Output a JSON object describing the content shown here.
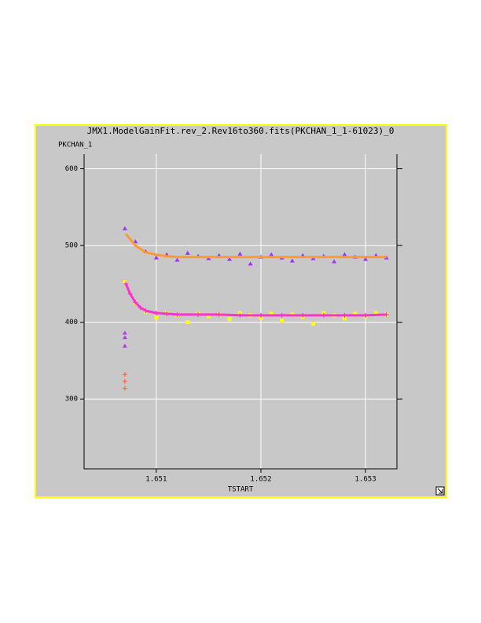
{
  "chart_data": {
    "type": "scatter",
    "title": "JMX1.ModelGainFit.rev_2.Rev16to360.fits(PKCHAN_1_1-61023)_0",
    "y_label": "PKCHAN_1",
    "x_label": "TSTART",
    "xlim": [
      1.65031,
      1.6533
    ],
    "ylim": [
      209,
      619
    ],
    "xticks": [
      1.651,
      1.652,
      1.653
    ],
    "yticks": [
      300,
      400,
      500,
      600
    ],
    "grid": true,
    "series": [
      {
        "color": "#9b30ff",
        "marker": "triangle",
        "x": [
          1.6507,
          1.6508,
          1.6509,
          1.651,
          1.6511,
          1.6512,
          1.6513,
          1.6514,
          1.6515,
          1.6516,
          1.6517,
          1.6518,
          1.6519,
          1.652,
          1.6521,
          1.6522,
          1.6523,
          1.6524,
          1.6525,
          1.6526,
          1.6527,
          1.6528,
          1.6529,
          1.653,
          1.6531,
          1.6532
        ],
        "values": [
          522,
          505,
          492,
          484,
          488,
          481,
          490,
          486,
          483,
          487,
          482,
          489,
          476,
          485,
          488,
          484,
          480,
          487,
          483,
          486,
          479,
          488,
          485,
          482,
          487,
          484
        ]
      },
      {
        "color": "#ffff00",
        "marker": "square",
        "x": [
          1.6507,
          1.6508,
          1.6509,
          1.651,
          1.6511,
          1.6512,
          1.6513,
          1.6514,
          1.6515,
          1.6516,
          1.6517,
          1.6518,
          1.6519,
          1.652,
          1.6521,
          1.6522,
          1.6523,
          1.6524,
          1.6525,
          1.6526,
          1.6527,
          1.6528,
          1.6529,
          1.653,
          1.6531,
          1.6532
        ],
        "values": [
          452,
          425,
          414,
          406,
          412,
          409,
          400,
          411,
          408,
          410,
          404,
          412,
          409,
          406,
          411,
          402,
          410,
          407,
          398,
          412,
          409,
          405,
          411,
          408,
          412,
          410
        ]
      },
      {
        "color": "#b040e0",
        "marker": "triangle",
        "x": [
          1.6507,
          1.6507,
          1.6507
        ],
        "values": [
          386,
          380,
          369
        ]
      },
      {
        "color": "#ff9933",
        "marker": "line",
        "x": [
          1.65071,
          1.6508,
          1.6509,
          1.651,
          1.6511,
          1.6512,
          1.6514,
          1.6516,
          1.6518,
          1.652,
          1.6522,
          1.6524,
          1.6526,
          1.6528,
          1.653,
          1.6532
        ],
        "values": [
          515,
          500,
          491,
          488,
          486,
          485,
          485,
          485,
          485,
          485,
          485,
          485,
          485,
          485,
          485,
          485
        ]
      },
      {
        "color": "#ff33cc",
        "marker": "plus-line",
        "x": [
          1.65071,
          1.65075,
          1.6508,
          1.65085,
          1.6509,
          1.651,
          1.6511,
          1.6512,
          1.6514,
          1.6516,
          1.6518,
          1.652,
          1.6522,
          1.6524,
          1.6526,
          1.6528,
          1.653,
          1.6532
        ],
        "values": [
          450,
          437,
          426,
          419,
          415,
          412,
          411,
          410,
          410,
          410,
          409,
          409,
          409,
          409,
          409,
          409,
          409,
          410
        ]
      },
      {
        "color": "#ff6633",
        "marker": "plus",
        "x": [
          1.6507,
          1.6507,
          1.6507
        ],
        "values": [
          332,
          323,
          314
        ]
      }
    ]
  }
}
